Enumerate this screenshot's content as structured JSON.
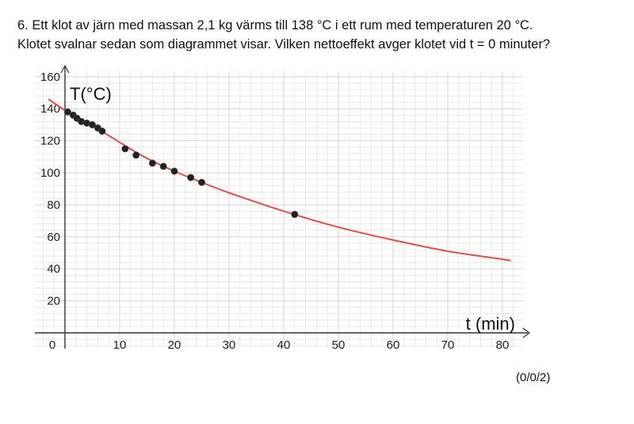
{
  "question": {
    "line1": "6. Ett klot av järn med massan 2,1 kg värms till 138 °C i ett rum med temperaturen 20 °C.",
    "line2": "Klotet svalnar sedan som diagrammet visar. Vilken nettoeffekt avger klotet vid t = 0 minuter?"
  },
  "score": "(0/0/2)",
  "chart_data": {
    "type": "scatter",
    "ylabel": "T(°C)",
    "xlabel": "t (min)",
    "xlim": [
      0,
      85
    ],
    "ylim": [
      0,
      160
    ],
    "x_ticks": [
      0,
      10,
      20,
      30,
      40,
      50,
      60,
      70,
      80
    ],
    "y_ticks": [
      20,
      40,
      60,
      80,
      100,
      120,
      140,
      160
    ],
    "grid": true,
    "colors": {
      "curve": "#e0504a",
      "points": "#222222",
      "grid": "#e2e2e2"
    },
    "points": {
      "x": [
        0.5,
        1.5,
        2.2,
        3.0,
        4.0,
        5.0,
        6.0,
        6.8,
        11,
        13,
        16,
        18,
        20,
        23,
        25,
        42
      ],
      "y": [
        138,
        136,
        134,
        132,
        131,
        130,
        128,
        126,
        115,
        111,
        106,
        104,
        101,
        97,
        94,
        74
      ]
    },
    "curve": {
      "x": [
        -3,
        0,
        5,
        10,
        15,
        20,
        25,
        30,
        40,
        50,
        60,
        70,
        80,
        81.5
      ],
      "y": [
        146,
        139,
        129.5,
        119,
        109,
        101,
        94,
        87.5,
        76,
        66,
        58,
        51,
        46,
        45
      ]
    }
  }
}
